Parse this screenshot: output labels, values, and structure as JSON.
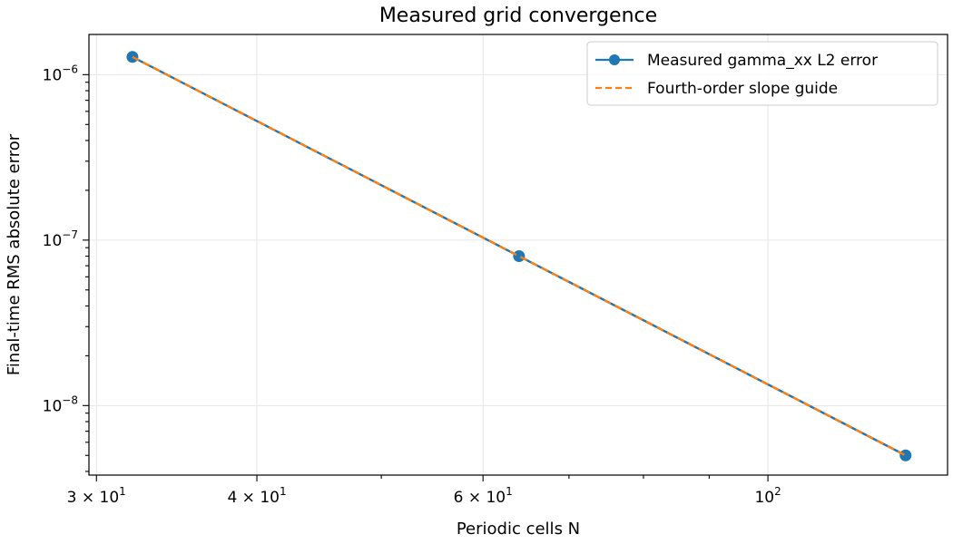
{
  "chart_data": {
    "type": "line",
    "title": "Measured grid convergence",
    "xlabel": "Periodic cells N",
    "ylabel": "Final-time RMS absolute error",
    "xscale": "log",
    "yscale": "log",
    "xlim": [
      29.6,
      138
    ],
    "ylim": [
      3.8e-09,
      1.75e-06
    ],
    "x_major_ticks": [
      30,
      40,
      60,
      100
    ],
    "x_major_tick_labels": [
      "3 × 10",
      "4 × 10",
      "6 × 10",
      "10"
    ],
    "x_major_tick_exponents": [
      "1",
      "1",
      "1",
      "2"
    ],
    "x_minor_ticks": [
      50,
      70,
      80,
      90
    ],
    "y_major_ticks": [
      1e-08,
      1e-07,
      1e-06
    ],
    "y_major_tick_labels": [
      "10",
      "10",
      "10"
    ],
    "y_major_tick_exponents": [
      "−8",
      "−7",
      "−6"
    ],
    "grid": true,
    "legend_position": "upper right",
    "series": [
      {
        "name": "Measured gamma_xx L2 error",
        "color": "#1f77b4",
        "style": "solid",
        "marker": "circle",
        "x": [
          32,
          64,
          128
        ],
        "y": [
          1.28e-06,
          8e-08,
          5e-09
        ]
      },
      {
        "name": "Fourth-order slope guide",
        "color": "#ff7f0e",
        "style": "dashed",
        "marker": "none",
        "x": [
          32,
          64,
          128
        ],
        "y": [
          1.28e-06,
          8e-08,
          5e-09
        ]
      }
    ]
  }
}
